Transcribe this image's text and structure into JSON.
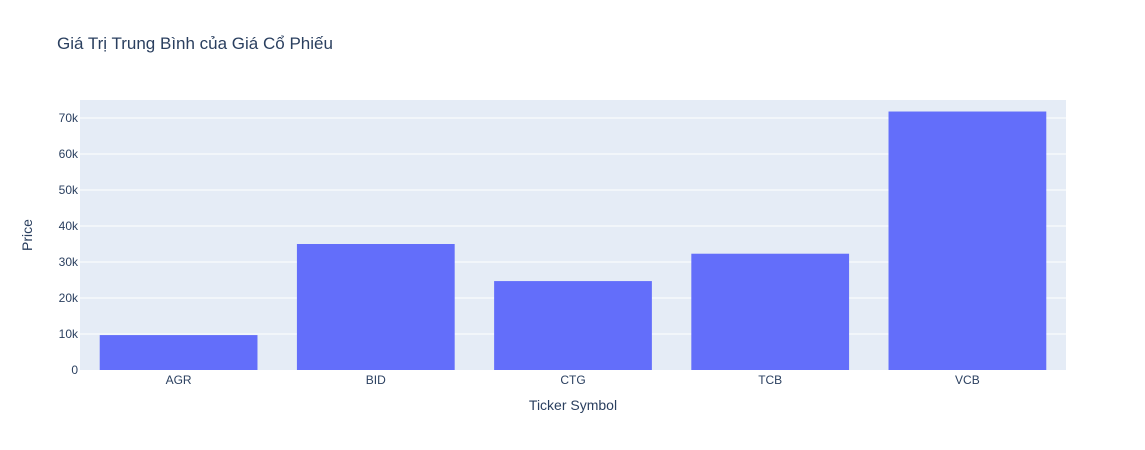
{
  "chart_data": {
    "type": "bar",
    "title": "Giá Trị Trung Bình của Giá Cổ Phiếu",
    "xlabel": "Ticker Symbol",
    "ylabel": "Price",
    "categories": [
      "AGR",
      "BID",
      "CTG",
      "TCB",
      "VCB"
    ],
    "values": [
      9700,
      35000,
      24700,
      32300,
      71800
    ],
    "ylim": [
      0,
      75000
    ],
    "yticks": [
      0,
      10000,
      20000,
      30000,
      40000,
      50000,
      60000,
      70000
    ],
    "ytick_labels": [
      "0",
      "10k",
      "20k",
      "30k",
      "40k",
      "50k",
      "60k",
      "70k"
    ],
    "grid": true,
    "colors": {
      "bar": "#636efa",
      "plot_bg": "#e5ecf6",
      "grid": "#ffffff",
      "text": "#2a3f5f"
    }
  }
}
